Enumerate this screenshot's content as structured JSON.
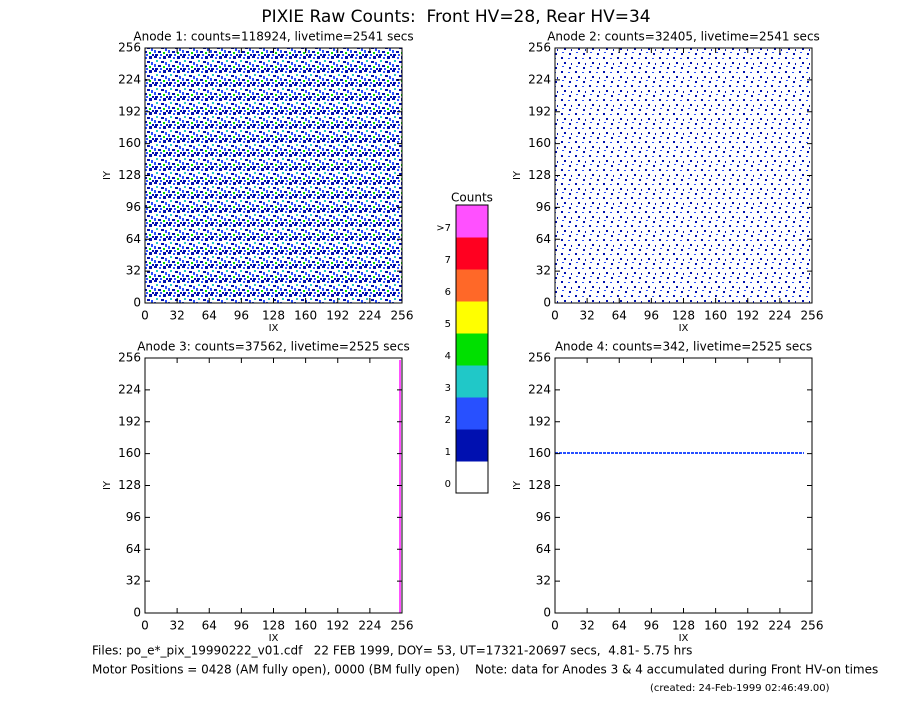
{
  "title": "PIXIE Raw Counts:  Front HV=28, Rear HV=34",
  "chart_data": [
    {
      "type": "heatmap",
      "title": "Anode 1: counts=118924, livetime=2541 secs",
      "xlabel": "IX",
      "ylabel": "IY",
      "xlim": [
        0,
        256
      ],
      "ylim": [
        0,
        256
      ],
      "xticks": [
        0,
        32,
        64,
        96,
        128,
        160,
        192,
        224,
        256
      ],
      "yticks": [
        0,
        32,
        64,
        96,
        128,
        160,
        192,
        224,
        256
      ]
    },
    {
      "type": "heatmap",
      "title": "Anode 2: counts=32405, livetime=2541 secs",
      "xlabel": "IX",
      "ylabel": "IY",
      "xlim": [
        0,
        256
      ],
      "ylim": [
        0,
        256
      ],
      "xticks": [
        0,
        32,
        64,
        96,
        128,
        160,
        192,
        224,
        256
      ],
      "yticks": [
        0,
        32,
        64,
        96,
        128,
        160,
        192,
        224,
        256
      ]
    },
    {
      "type": "heatmap",
      "title": "Anode 3: counts=37562, livetime=2525 secs",
      "xlabel": "IX",
      "ylabel": "IY",
      "xlim": [
        0,
        256
      ],
      "ylim": [
        0,
        256
      ],
      "xticks": [
        0,
        32,
        64,
        96,
        128,
        160,
        192,
        224,
        256
      ],
      "yticks": [
        0,
        32,
        64,
        96,
        128,
        160,
        192,
        224,
        256
      ]
    },
    {
      "type": "heatmap",
      "title": "Anode 4: counts=342, livetime=2525 secs",
      "xlabel": "IX",
      "ylabel": "IY",
      "xlim": [
        0,
        256
      ],
      "ylim": [
        0,
        256
      ],
      "xticks": [
        0,
        32,
        64,
        96,
        128,
        160,
        192,
        224,
        256
      ],
      "yticks": [
        0,
        32,
        64,
        96,
        128,
        160,
        192,
        224,
        256
      ]
    }
  ],
  "colorbar": {
    "title": "Counts",
    "labels": [
      "0",
      "1",
      "2",
      "3",
      "4",
      "5",
      "6",
      "7",
      ">7"
    ],
    "colors": [
      "#ffffff",
      "#0010b0",
      "#2850ff",
      "#20c8c8",
      "#00e000",
      "#ffff00",
      "#ff6828",
      "#ff0020",
      "#ff50ff"
    ]
  },
  "footer": {
    "files": "Files: po_e*_pix_19990222_v01.cdf   22 FEB 1999, DOY= 53, UT=17321-20697 secs,  4.81- 5.75 hrs",
    "motor": "Motor Positions = 0428 (AM fully open), 0000 (BM fully open)    Note: data for Anodes 3 & 4 accumulated during Front HV-on times",
    "created": "(created: 24-Feb-1999 02:46:49.00)"
  }
}
